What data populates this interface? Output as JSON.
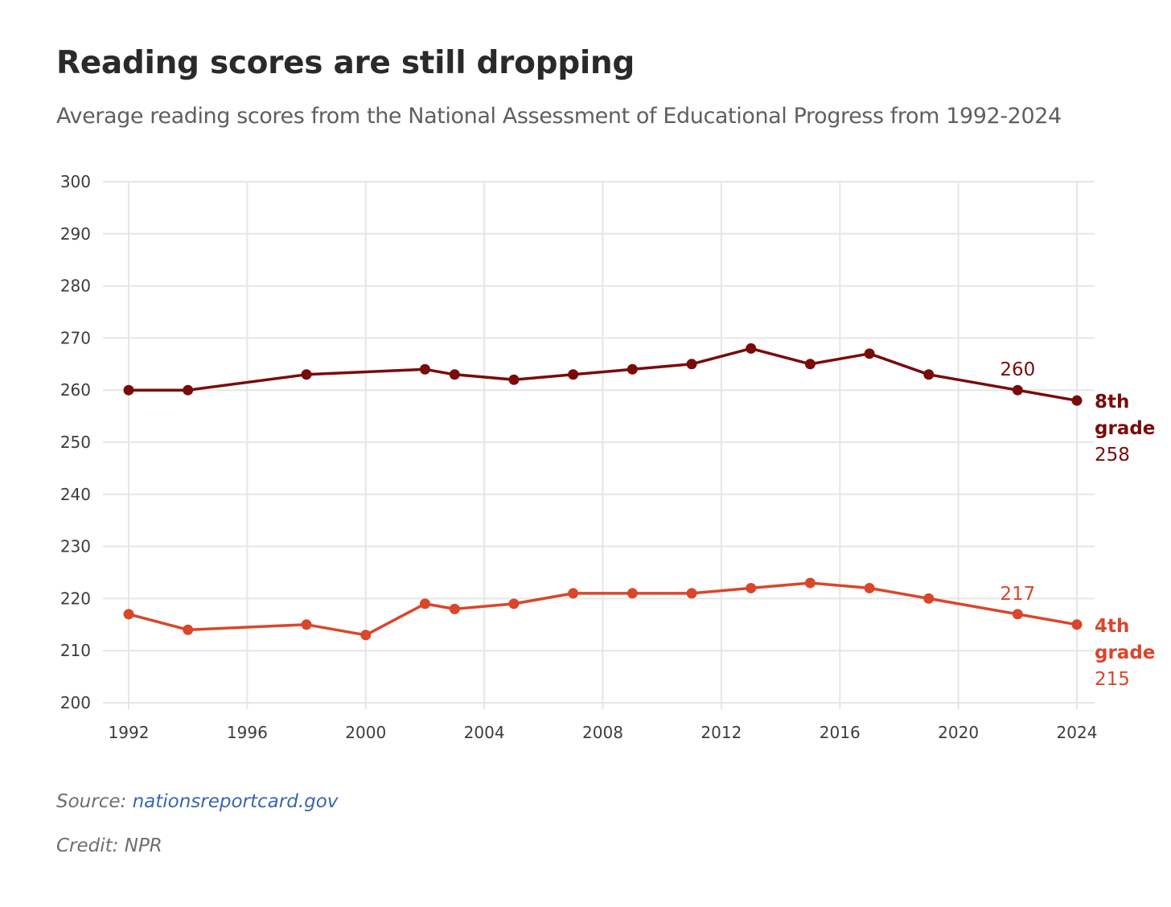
{
  "chart_data": {
    "type": "line",
    "title": "Reading scores are still dropping",
    "subtitle": "Average reading scores from the National Assessment of Educational Progress from 1992-2024",
    "xlabel": "",
    "ylabel": "",
    "xlim": [
      1992,
      2024
    ],
    "ylim": [
      200,
      300
    ],
    "x_ticks": [
      1992,
      1996,
      2000,
      2004,
      2008,
      2012,
      2016,
      2020,
      2024
    ],
    "y_ticks": [
      200,
      210,
      220,
      230,
      240,
      250,
      260,
      270,
      280,
      290,
      300
    ],
    "grid": true,
    "legend": "direct labels at line ends",
    "series": [
      {
        "name": "8th grade",
        "name_lines": [
          "8th",
          "grade"
        ],
        "color": "#7a0b0b",
        "end_value_label": "258",
        "annotation": {
          "x": 2022,
          "label": "260"
        },
        "x": [
          1992,
          1994,
          1998,
          2002,
          2003,
          2005,
          2007,
          2009,
          2011,
          2013,
          2015,
          2017,
          2019,
          2022,
          2024
        ],
        "values": [
          260,
          260,
          263,
          264,
          263,
          262,
          263,
          264,
          265,
          268,
          265,
          267,
          263,
          260,
          258
        ]
      },
      {
        "name": "4th grade",
        "name_lines": [
          "4th",
          "grade"
        ],
        "color": "#d9462b",
        "end_value_label": "215",
        "annotation": {
          "x": 2022,
          "label": "217"
        },
        "x": [
          1992,
          1994,
          1998,
          2000,
          2002,
          2003,
          2005,
          2007,
          2009,
          2011,
          2013,
          2015,
          2017,
          2019,
          2022,
          2024
        ],
        "values": [
          217,
          214,
          215,
          213,
          219,
          218,
          219,
          221,
          221,
          221,
          222,
          223,
          222,
          220,
          217,
          215
        ]
      }
    ]
  },
  "footer": {
    "source_label": "Source: ",
    "source_link": "nationsreportcard.gov",
    "credit": "Credit: NPR"
  }
}
